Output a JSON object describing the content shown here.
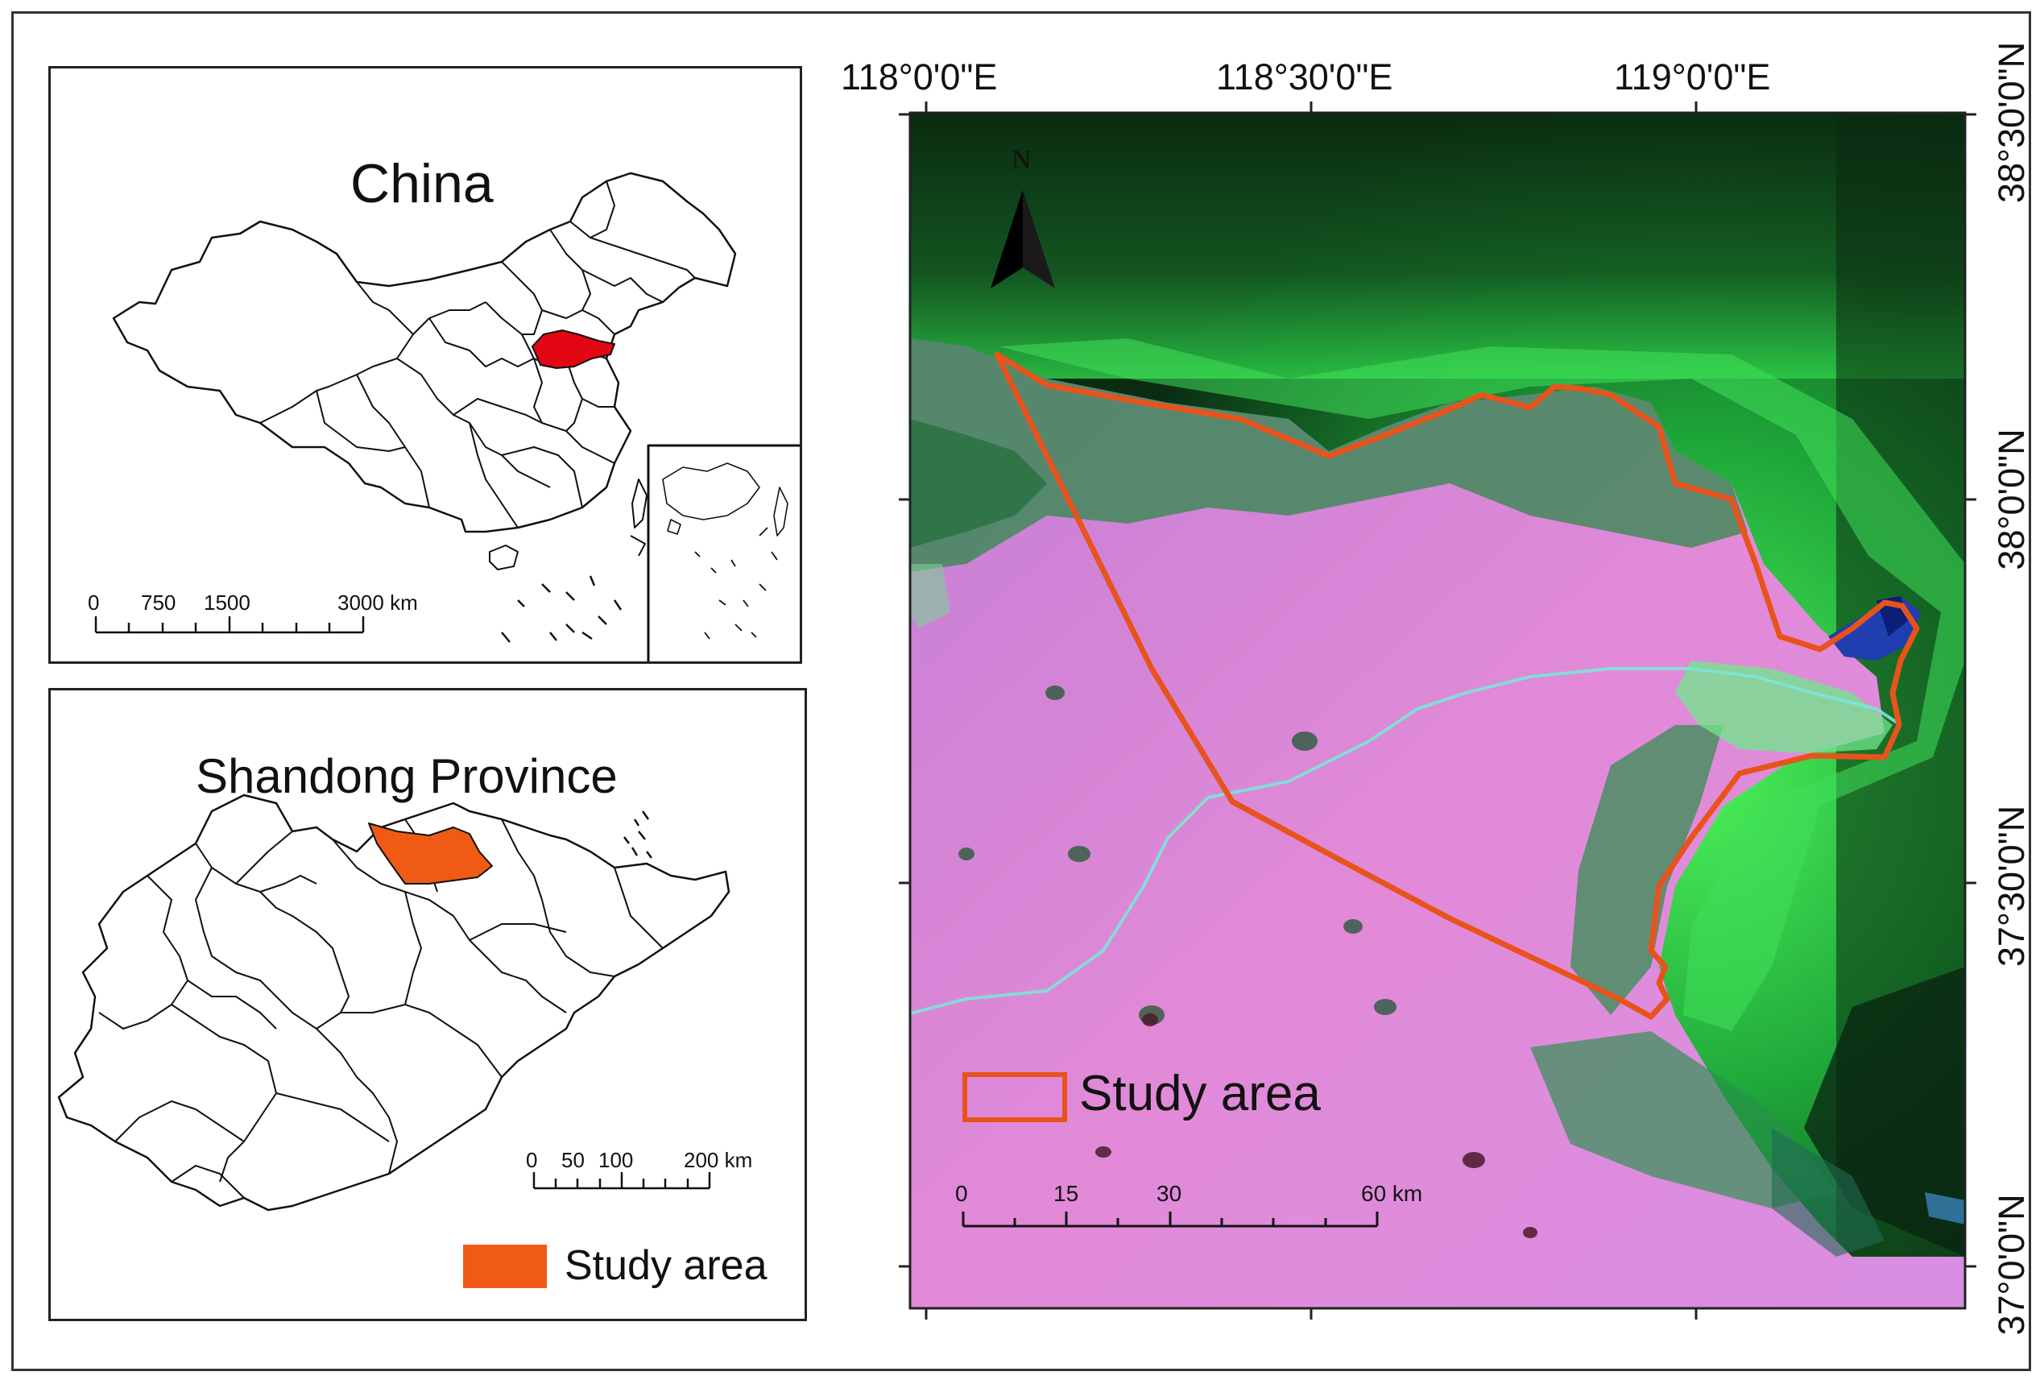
{
  "china_panel": {
    "title": "China",
    "scale_labels": [
      "0",
      "750",
      "1500",
      "3000 km"
    ],
    "highlight_color": "#e30613"
  },
  "shandong_panel": {
    "title": "Shandong Province",
    "scale_labels": [
      "0",
      "50",
      "100",
      "200 km"
    ],
    "legend_label": "Study area",
    "highlight_color": "#f05a14"
  },
  "main_map": {
    "lon_labels": [
      "118°0'0\"E",
      "118°30'0\"E",
      "119°0'0\"E"
    ],
    "lat_labels": [
      "38°30'0\"N",
      "38°0'0\"N",
      "37°30'0\"N",
      "37°0'0\"N"
    ],
    "north_label": "N",
    "legend_label": "Study area",
    "boundary_color": "#e8531c",
    "scale_labels": [
      "0",
      "15",
      "30",
      "60 km"
    ]
  }
}
